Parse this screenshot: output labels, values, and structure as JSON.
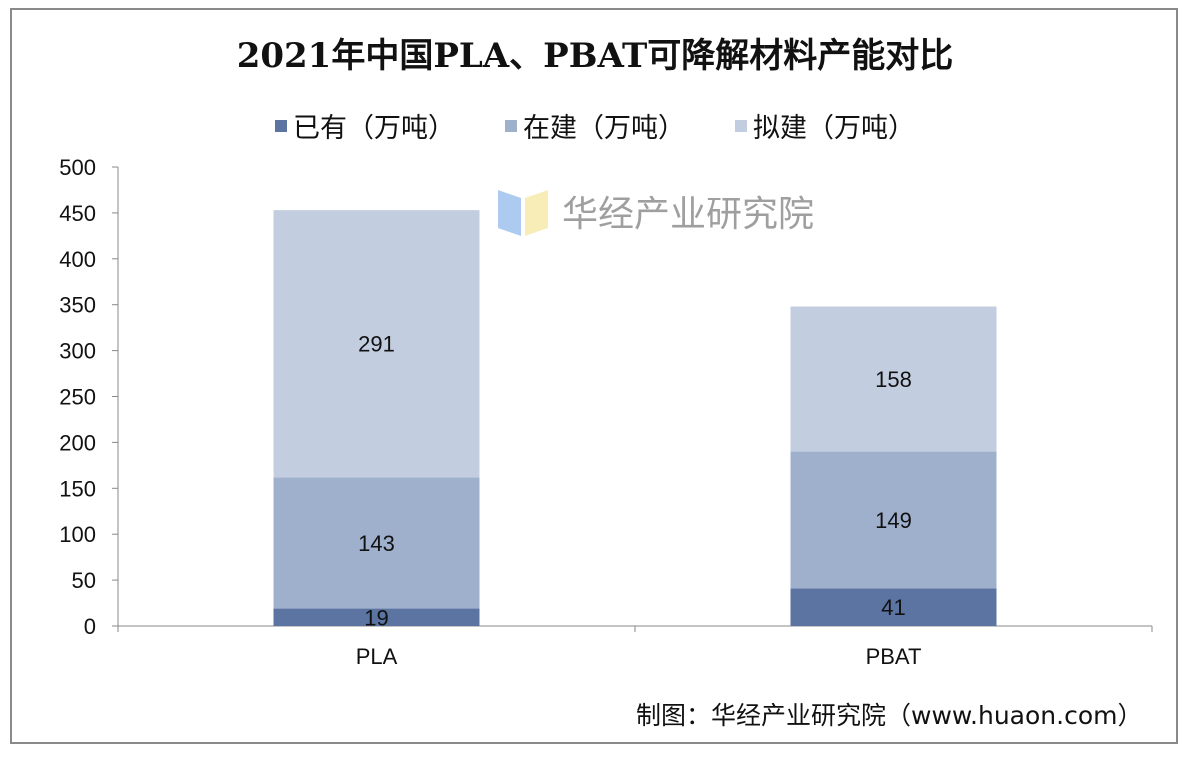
{
  "chart_data": {
    "type": "bar",
    "stacked": true,
    "title": "2021年中国PLA、PBAT可降解材料产能对比",
    "categories": [
      "PLA",
      "PBAT"
    ],
    "series": [
      {
        "name": "已有（万吨）",
        "values": [
          19,
          41
        ],
        "color": "#5b74a1"
      },
      {
        "name": "在建（万吨）",
        "values": [
          143,
          149
        ],
        "color": "#9fb0cd"
      },
      {
        "name": "拟建（万吨）",
        "values": [
          291,
          158
        ],
        "color": "#c3cde0"
      }
    ],
    "ylim": [
      0,
      500
    ],
    "yticks": [
      0,
      50,
      100,
      150,
      200,
      250,
      300,
      350,
      400,
      450,
      500
    ],
    "xlabel": "",
    "ylabel": "",
    "grid": false,
    "legend_position": "top"
  },
  "source": "制图：华经产业研究院（www.huaon.com）",
  "watermark": "华经产业研究院"
}
